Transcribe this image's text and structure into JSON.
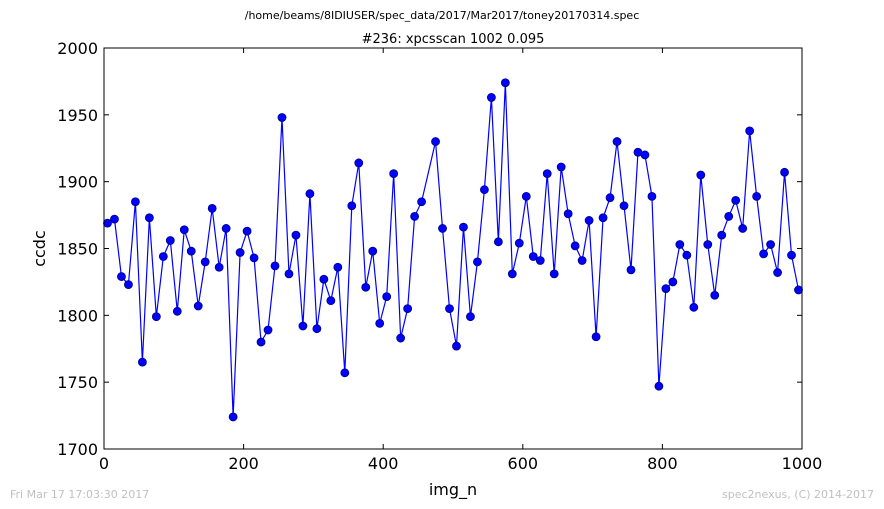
{
  "suptitle": "/home/beams/8IDIUSER/spec_data/2017/Mar2017/toney20170314.spec",
  "footer": {
    "left": "Fri Mar 17 17:03:30 2017",
    "right": "spec2nexus, (C) 2014-2017"
  },
  "colors": {
    "series": "#0000ff",
    "marker_fill": "#0000ff",
    "marker_edge": "#000080",
    "footer_text": "#c0c0c0"
  },
  "chart_data": {
    "type": "line",
    "title": "#236: xpcsscan 1002 0.095",
    "xlabel": "img_n",
    "ylabel": "ccdc",
    "xlim": [
      0,
      1000
    ],
    "ylim": [
      1700,
      2000
    ],
    "xticks": [
      "0",
      "200",
      "400",
      "600",
      "800",
      "1000"
    ],
    "yticks": [
      "1700",
      "1750",
      "1800",
      "1850",
      "1900",
      "1950",
      "2000"
    ],
    "grid": false,
    "legend": "none",
    "series": [
      {
        "x": [
          5,
          15,
          25,
          35,
          45,
          55,
          65,
          75,
          85,
          95,
          105,
          115,
          125,
          135,
          145,
          155,
          165,
          175,
          185,
          195,
          205,
          215,
          225,
          235,
          245,
          255,
          265,
          275,
          285,
          295,
          305,
          315,
          325,
          335,
          345,
          355,
          365,
          375,
          385,
          395,
          405,
          415,
          425,
          435,
          445,
          455,
          475,
          485,
          495,
          505,
          515,
          525,
          535,
          545,
          555,
          565,
          575,
          585,
          595,
          605,
          615,
          625,
          635,
          645,
          655,
          665,
          675,
          685,
          695,
          705,
          715,
          725,
          735,
          745,
          755,
          765,
          775,
          785,
          795,
          805,
          815,
          825,
          835,
          845,
          855,
          865,
          875,
          885,
          895,
          905,
          915,
          925,
          935,
          945,
          955,
          965,
          975,
          985,
          995
        ],
        "values": [
          1869,
          1872,
          1829,
          1823,
          1885,
          1765,
          1873,
          1799,
          1844,
          1856,
          1803,
          1864,
          1848,
          1807,
          1840,
          1880,
          1836,
          1865,
          1724,
          1847,
          1863,
          1843,
          1780,
          1789,
          1837,
          1948,
          1831,
          1860,
          1792,
          1891,
          1790,
          1827,
          1811,
          1836,
          1757,
          1882,
          1914,
          1821,
          1848,
          1794,
          1814,
          1906,
          1783,
          1805,
          1874,
          1885,
          1930,
          1865,
          1805,
          1777,
          1866,
          1799,
          1840,
          1894,
          1963,
          1855,
          1974,
          1831,
          1854,
          1889,
          1844,
          1841,
          1906,
          1831,
          1911,
          1876,
          1852,
          1841,
          1871,
          1784,
          1873,
          1888,
          1930,
          1882,
          1834,
          1922,
          1920,
          1889,
          1747,
          1820,
          1825,
          1853,
          1845,
          1806,
          1905,
          1853,
          1815,
          1860,
          1874,
          1886,
          1865,
          1938,
          1889,
          1846,
          1853,
          1832,
          1907,
          1845,
          1819
        ]
      }
    ]
  }
}
